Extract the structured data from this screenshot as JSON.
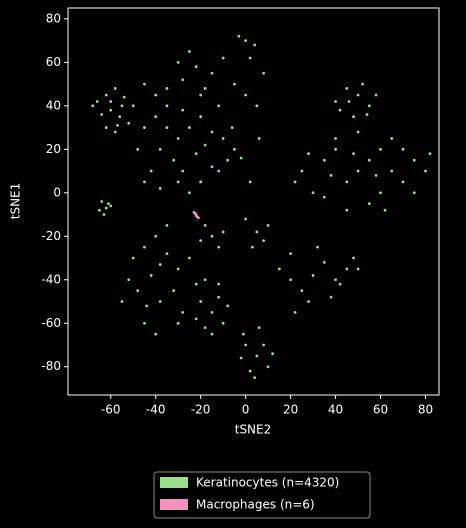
{
  "chart_data": {
    "type": "scatter",
    "xlabel": "tSNE2",
    "ylabel": "tSNE1",
    "xlim": [
      -79,
      86
    ],
    "ylim": [
      -93,
      85
    ],
    "xticks": [
      -60,
      -40,
      -20,
      0,
      20,
      40,
      60,
      80
    ],
    "yticks": [
      -80,
      -60,
      -40,
      -20,
      0,
      20,
      40,
      60,
      80
    ],
    "series": [
      {
        "name": "Keratinocytes (n=4320)",
        "color": "#98df8a",
        "x": [
          -66,
          -62,
          -58,
          -54,
          -50,
          -64,
          -60,
          -56,
          -52,
          -62,
          -58,
          -68,
          -55,
          -60,
          -57,
          -45,
          -40,
          -35,
          -30,
          -25,
          -20,
          -15,
          -38,
          -32,
          -28,
          -22,
          -18,
          -42,
          -45,
          -38,
          -30,
          -25,
          -35,
          -28,
          -22,
          -18,
          -12,
          -10,
          -8,
          -5,
          -2,
          -12,
          -40,
          -45,
          -30,
          -25,
          -20,
          -15,
          -5,
          0,
          5,
          8,
          2,
          0,
          -3,
          4,
          -10,
          -6,
          -48,
          -20,
          -35,
          -28,
          -15,
          2,
          6,
          40,
          45,
          50,
          55,
          48,
          42,
          52,
          58,
          46,
          54,
          22,
          25,
          30,
          35,
          40,
          45,
          50,
          55,
          60,
          65,
          70,
          75,
          80,
          60,
          55,
          45,
          40,
          50,
          65,
          70,
          35,
          28,
          82,
          75,
          58,
          48,
          62,
          38,
          -64,
          -62,
          -65,
          -61,
          -63,
          -60,
          -50,
          -45,
          -40,
          -35,
          -30,
          -42,
          -48,
          -38,
          -32,
          -28,
          -45,
          -40,
          -52,
          -25,
          -35,
          -30,
          -55,
          -22,
          -38,
          -44,
          -20,
          -15,
          -10,
          -18,
          -12,
          -8,
          -22,
          -15,
          -18,
          -12,
          0,
          5,
          10,
          2,
          -2,
          8,
          12,
          4,
          -1,
          6,
          15,
          20,
          25,
          30,
          35,
          40,
          45,
          20,
          28,
          38,
          50,
          48,
          22,
          32,
          42,
          -18,
          -15,
          -12,
          -20,
          5,
          8,
          3,
          10,
          -10,
          0
        ],
        "values": [
          42,
          45,
          48,
          44,
          40,
          36,
          38,
          35,
          32,
          30,
          28,
          40,
          40,
          42,
          31,
          30,
          35,
          40,
          25,
          30,
          35,
          28,
          20,
          15,
          10,
          18,
          22,
          10,
          5,
          2,
          5,
          0,
          48,
          52,
          58,
          48,
          40,
          25,
          15,
          20,
          16,
          10,
          45,
          50,
          60,
          65,
          45,
          55,
          50,
          45,
          40,
          55,
          62,
          70,
          72,
          68,
          62,
          30,
          20,
          5,
          30,
          38,
          12,
          5,
          25,
          42,
          48,
          45,
          40,
          35,
          38,
          50,
          45,
          42,
          36,
          5,
          10,
          0,
          15,
          20,
          5,
          10,
          15,
          20,
          10,
          5,
          15,
          10,
          0,
          -5,
          -8,
          25,
          28,
          25,
          20,
          -2,
          18,
          18,
          0,
          8,
          18,
          -8,
          8,
          -4,
          -7,
          -8,
          -5,
          -10,
          -6,
          -30,
          -25,
          -20,
          -28,
          -35,
          -38,
          -45,
          -50,
          -45,
          -55,
          -60,
          -65,
          -40,
          -30,
          -15,
          -60,
          -50,
          -42,
          -33,
          -52,
          -50,
          -55,
          -60,
          -62,
          -48,
          -52,
          -58,
          -65,
          -40,
          -42,
          -70,
          -75,
          -80,
          -82,
          -76,
          -70,
          -74,
          -85,
          -65,
          -62,
          -35,
          -40,
          -45,
          -38,
          -32,
          -40,
          -35,
          -28,
          -50,
          -48,
          -35,
          -30,
          -55,
          -25,
          -42,
          -15,
          -20,
          -25,
          -22,
          -18,
          -22,
          -25,
          -15,
          -18,
          -12
        ]
      },
      {
        "name": "Macrophages (n=6)",
        "color": "#f48fc0",
        "x": [
          -23,
          -22,
          -22,
          -21.5,
          -22.5,
          -21
        ],
        "values": [
          -9,
          -10,
          -10.5,
          -11,
          -9.5,
          -11.5
        ]
      }
    ]
  }
}
